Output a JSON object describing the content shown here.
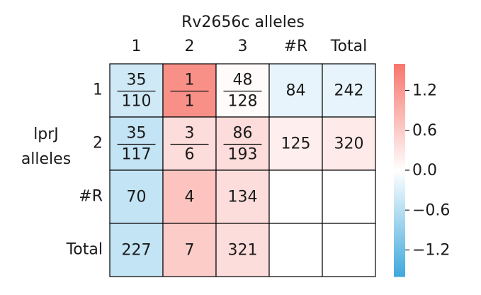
{
  "chart_data": {
    "type": "heatmap",
    "title": "Rv2656c alleles",
    "ylabel": [
      "lprJ",
      "alleles"
    ],
    "columns": [
      "1",
      "2",
      "3",
      "#R",
      "Total"
    ],
    "rows": [
      "1",
      "2",
      "#R",
      "Total"
    ],
    "cells": [
      [
        {
          "value": -0.4,
          "numerator": "35",
          "denominator": "110"
        },
        {
          "value": 1.3,
          "numerator": "1",
          "denominator": "1"
        },
        {
          "value": 0.05,
          "numerator": "48",
          "denominator": "128"
        },
        {
          "value": -0.2,
          "label": "84"
        },
        {
          "value": -0.2,
          "label": "242"
        }
      ],
      [
        {
          "value": -0.5,
          "numerator": "35",
          "denominator": "117"
        },
        {
          "value": 0.4,
          "numerator": "3",
          "denominator": "6"
        },
        {
          "value": 0.4,
          "numerator": "86",
          "denominator": "193"
        },
        {
          "value": 0.2,
          "label": "125"
        },
        {
          "value": 0.25,
          "label": "320"
        }
      ],
      [
        {
          "value": -0.5,
          "label": "70"
        },
        {
          "value": 0.7,
          "label": "4"
        },
        {
          "value": 0.4,
          "label": "134"
        },
        null,
        null
      ],
      [
        {
          "value": -0.5,
          "label": "227"
        },
        {
          "value": 0.6,
          "label": "7"
        },
        {
          "value": 0.4,
          "label": "321"
        },
        null,
        null
      ]
    ],
    "clim": [
      -1.6,
      1.6
    ],
    "cticks": [
      {
        "value": -1.2,
        "label": "−1.2"
      },
      {
        "value": -0.6,
        "label": "−0.6"
      },
      {
        "value": 0,
        "label": "0.0"
      },
      0.6,
      1.2
    ],
    "colors": {
      "low": "#3ea8dc",
      "mid": "#ffffff",
      "high": "#f8766d"
    }
  }
}
